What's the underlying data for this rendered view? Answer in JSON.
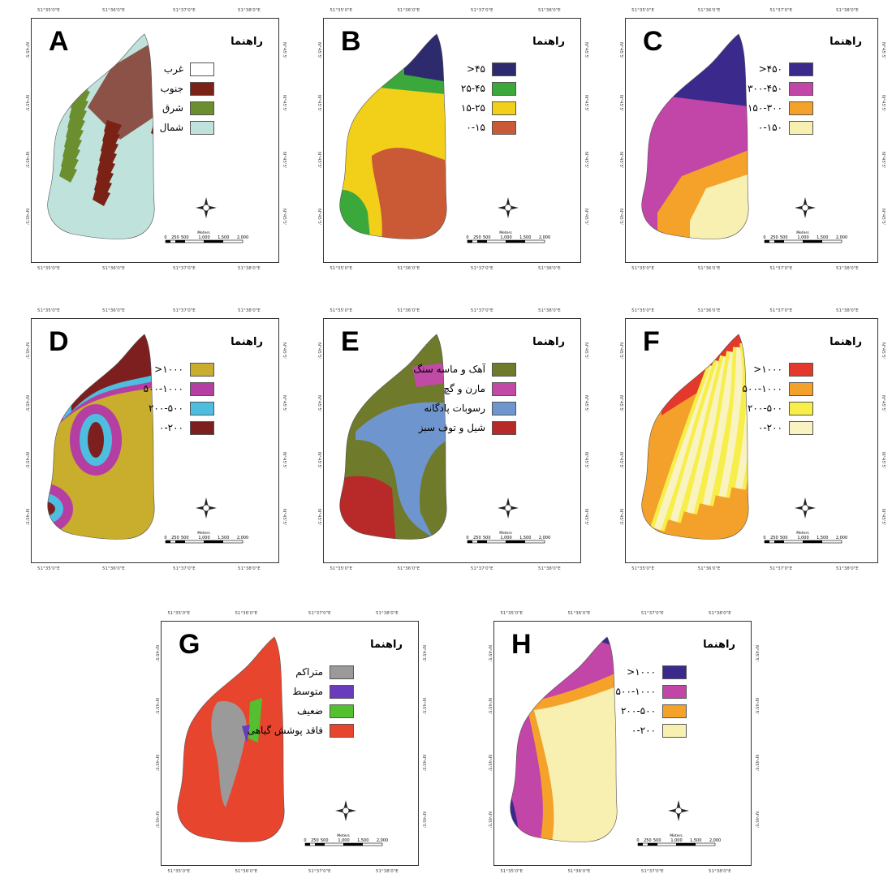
{
  "legend_title": "راهنما",
  "scalebar": {
    "unit": "Meters",
    "ticks": [
      "0",
      "250",
      "500",
      "1,000",
      "1,500",
      "2,000"
    ]
  },
  "coords": {
    "lon": [
      "51°35'0\"E",
      "51°36'0\"E",
      "51°37'0\"E",
      "51°38'0\"E"
    ],
    "lat": "N°45'5'"
  },
  "panels": [
    {
      "letter": "A",
      "legend": [
        {
          "label": "غرب",
          "color": "#ffffff"
        },
        {
          "label": "جنوب",
          "color": "#7b2216"
        },
        {
          "label": "شرق",
          "color": "#6b8e2f"
        },
        {
          "label": "شمال",
          "color": "#bfe3dc"
        }
      ]
    },
    {
      "letter": "B",
      "legend": [
        {
          "label": "۴۵<",
          "color": "#2e2a6e"
        },
        {
          "label": "۲۵-۴۵",
          "color": "#3aa83a"
        },
        {
          "label": "۱۵-۲۵",
          "color": "#f2d01a"
        },
        {
          "label": "۰-۱۵",
          "color": "#c95a35"
        }
      ]
    },
    {
      "letter": "C",
      "legend": [
        {
          "label": "۴۵۰<",
          "color": "#3b2a8c"
        },
        {
          "label": "۳۰۰-۴۵۰",
          "color": "#c245a8"
        },
        {
          "label": "۱۵۰-۳۰۰",
          "color": "#f5a22a"
        },
        {
          "label": "۰-۱۵۰",
          "color": "#f7f0b0"
        }
      ]
    },
    {
      "letter": "D",
      "legend": [
        {
          "label": "۱۰۰۰<",
          "color": "#c9ad2c"
        },
        {
          "label": "۵۰۰-۱۰۰۰",
          "color": "#b53ea3"
        },
        {
          "label": "۲۰۰-۵۰۰",
          "color": "#4ebee0"
        },
        {
          "label": "۰-۲۰۰",
          "color": "#7d1f1f"
        }
      ]
    },
    {
      "letter": "E",
      "legend": [
        {
          "label": "آهک و ماسه سنگ",
          "color": "#6f7a2a"
        },
        {
          "label": "مارن و گچ",
          "color": "#c04aa6"
        },
        {
          "label": "رسوبات پادگانه",
          "color": "#6f95cf"
        },
        {
          "label": "شیل و توف سبز",
          "color": "#b82a2a"
        }
      ]
    },
    {
      "letter": "F",
      "legend": [
        {
          "label": "۱۰۰۰<",
          "color": "#e3382b"
        },
        {
          "label": "۵۰۰-۱۰۰۰",
          "color": "#f3a12a"
        },
        {
          "label": "۲۰۰-۵۰۰",
          "color": "#f7ee4a"
        },
        {
          "label": "۰-۲۰۰",
          "color": "#f8f3c0"
        }
      ]
    },
    {
      "letter": "G",
      "legend": [
        {
          "label": "متراکم",
          "color": "#9a9a9a"
        },
        {
          "label": "متوسط",
          "color": "#6a3bbd"
        },
        {
          "label": "ضعیف",
          "color": "#55c02f"
        },
        {
          "label": "فاقد پوشش گیاهی",
          "color": "#e8452f"
        }
      ]
    },
    {
      "letter": "H",
      "legend": [
        {
          "label": "۱۰۰۰<",
          "color": "#3b2a8c"
        },
        {
          "label": "۵۰۰-۱۰۰۰",
          "color": "#c245a8"
        },
        {
          "label": "۲۰۰-۵۰۰",
          "color": "#f5a22a"
        },
        {
          "label": "۰-۲۰۰",
          "color": "#f7f0b0"
        }
      ]
    }
  ]
}
